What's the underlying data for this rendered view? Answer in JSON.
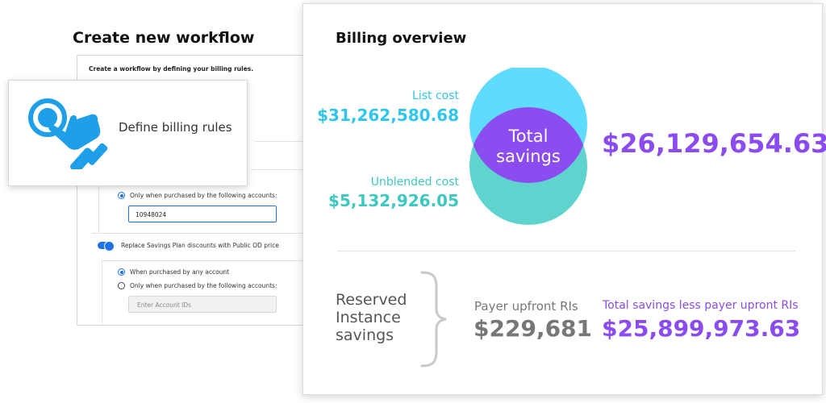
{
  "workflow": {
    "title": "Create new workflow",
    "intro": "Create a workflow by defining your billing rules.",
    "card_label": "Define billing rules",
    "option_following_accounts_1": "Only when purchased by the following accounts:",
    "account_ids_value": "10948024",
    "toggle_label": "Replace Savings Plan discounts with Public OD price",
    "option_any_account": "When purchased by any account",
    "option_following_accounts_2": "Only when purchased by the following accounts:",
    "account_ids_placeholder": "Enter Account IDs"
  },
  "billing": {
    "title": "Billing overview",
    "list_cost_label": "List cost",
    "list_cost_value": "$31,262,580.68",
    "unblended_cost_label": "Unblended cost",
    "unblended_cost_value": "$5,132,926.05",
    "total_savings_line1": "Total",
    "total_savings_line2": "savings",
    "total_savings_value": "$26,129,654.63",
    "ri_line1": "Reserved",
    "ri_line2": "Instance",
    "ri_line3": "savings",
    "payer_upfront_label": "Payer upfront RIs",
    "payer_upfront_value": "$229,681",
    "total_less_label": "Total savings less payer upront RIs",
    "total_less_value": "$25,899,973.63"
  },
  "colors": {
    "list_cost": "#30c5ea",
    "unblended_cost": "#3ec8c0",
    "total_savings": "#8a4cf0",
    "accent_blue": "#1e73e8",
    "neutral_value": "#777777"
  },
  "icons": [
    "hand-pointer-icon",
    "curly-brace-icon"
  ]
}
